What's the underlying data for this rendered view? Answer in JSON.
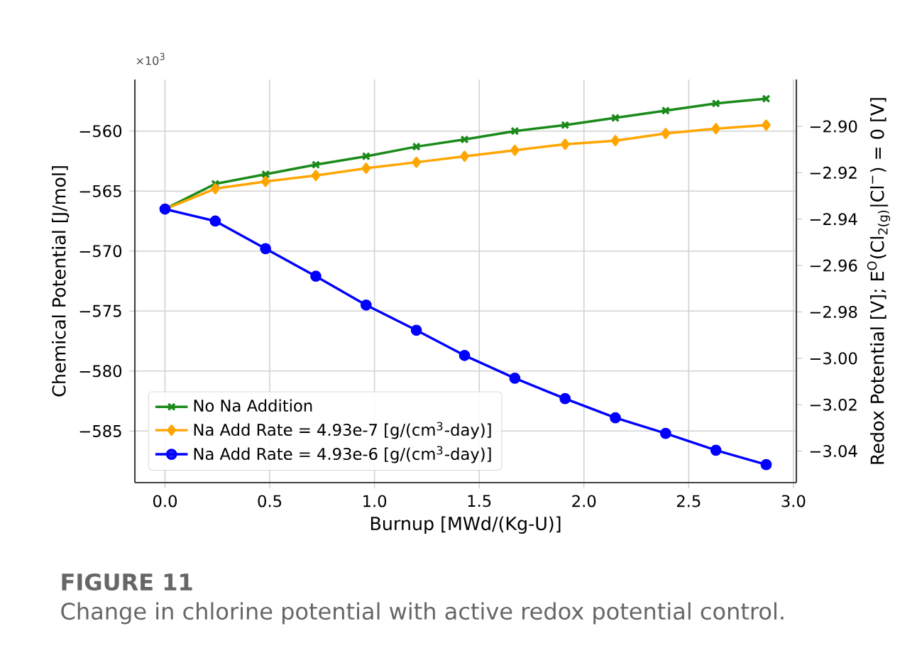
{
  "chart_data": {
    "type": "line",
    "xlabel": "Burnup [MWd/(Kg-U)]",
    "ylabel": "Chemical Potential [J/mol]",
    "y2label": "Redox Potential [V]; E$^{O}$(Cl$_{2(g)}$|Cl$^{−}$) = 0 [V]",
    "annotations": [
      "×10$^{3}$",
      "**FIGURE 11**",
      "Change in chlorine potential with active redox potential control."
    ],
    "x": [
      0,
      0.24,
      0.48,
      0.72,
      0.96,
      1.2,
      1.43,
      1.67,
      1.91,
      2.15,
      2.39,
      2.63,
      2.87
    ],
    "series": [
      {
        "name": "No Na Addition",
        "color": "#1a8a1a",
        "marker": "cross",
        "values": [
          -566.5,
          -564.4,
          -563.6,
          -562.8,
          -562.1,
          -561.3,
          -560.7,
          -560.0,
          -559.5,
          -558.9,
          -558.3,
          -557.7,
          -557.3
        ]
      },
      {
        "name": "Na Add Rate = 4.93e-7 [g/(cm$^{3}$-day)]",
        "color": "#ffa500",
        "marker": "diamond",
        "values": [
          -566.5,
          -564.8,
          -564.2,
          -563.7,
          -563.1,
          -562.6,
          -562.1,
          -561.6,
          -561.1,
          -560.8,
          -560.2,
          -559.8,
          -559.5
        ]
      },
      {
        "name": "Na Add Rate = 4.93e-6 [g/(cm$^{3}$-day)]",
        "color": "#0000ff",
        "marker": "circle",
        "values": [
          -566.5,
          -567.5,
          -569.8,
          -572.1,
          -574.5,
          -576.6,
          -578.7,
          -580.6,
          -582.3,
          -583.9,
          -585.2,
          -586.6,
          -587.8
        ]
      }
    ],
    "xlim": [
      -0.144,
      3.014
    ],
    "xticks": [
      {
        "value": 0,
        "label": "0.0"
      },
      0.5,
      {
        "value": 1,
        "label": "1.0"
      },
      1.5,
      {
        "value": 2,
        "label": "2.0"
      },
      2.5,
      {
        "value": 3,
        "label": "3.0"
      }
    ],
    "ylim": [
      -589.3,
      -555.7
    ],
    "yticks": [
      {
        "value": -585,
        "label": "−585"
      },
      {
        "value": -580,
        "label": "−580"
      },
      {
        "value": -575,
        "label": "−575"
      },
      {
        "value": -570,
        "label": "−570"
      },
      {
        "value": -565,
        "label": "−565"
      },
      {
        "value": -560,
        "label": "−560"
      }
    ],
    "y2lim": [
      -3.0536,
      -2.8798
    ],
    "y2ticks": [
      {
        "value": -3.04,
        "label": "−3.04"
      },
      {
        "value": -3.02,
        "label": "−3.02"
      },
      {
        "value": -3.0,
        "label": "−3.00"
      },
      {
        "value": -2.98,
        "label": "−2.98"
      },
      {
        "value": -2.96,
        "label": "−2.96"
      },
      {
        "value": -2.94,
        "label": "−2.94"
      },
      {
        "value": -2.92,
        "label": "−2.92"
      },
      {
        "value": -2.9,
        "label": "−2.90"
      }
    ],
    "grid": true,
    "legend": "bottom left"
  }
}
